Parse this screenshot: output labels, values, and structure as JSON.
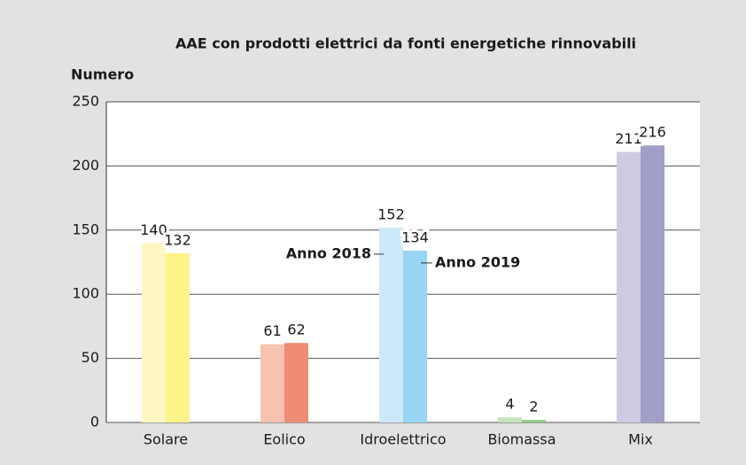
{
  "chart_data": {
    "type": "bar",
    "title": "AAE con prodotti elettrici da fonti energetiche rinnovabili",
    "y_label": "Numero",
    "categories": [
      "Solare",
      "Eolico",
      "Idroelettrico",
      "Biomassa",
      "Mix"
    ],
    "series": [
      {
        "name": "Anno 2018",
        "colors": [
          "#fff6c4",
          "#f7c3b0",
          "#cde9f9",
          "#c6e4be",
          "#cecae3"
        ],
        "values": [
          140,
          61,
          152,
          4,
          211
        ]
      },
      {
        "name": "Anno 2019",
        "colors": [
          "#fff38c",
          "#ef8d74",
          "#98d4f4",
          "#90cc86",
          "#a19ec9"
        ],
        "values": [
          132,
          62,
          134,
          2,
          216
        ]
      }
    ],
    "legend_category": 2,
    "ylim": [
      0,
      250
    ],
    "yticks": [
      0,
      50,
      100,
      150,
      200,
      250
    ],
    "grid": true
  }
}
